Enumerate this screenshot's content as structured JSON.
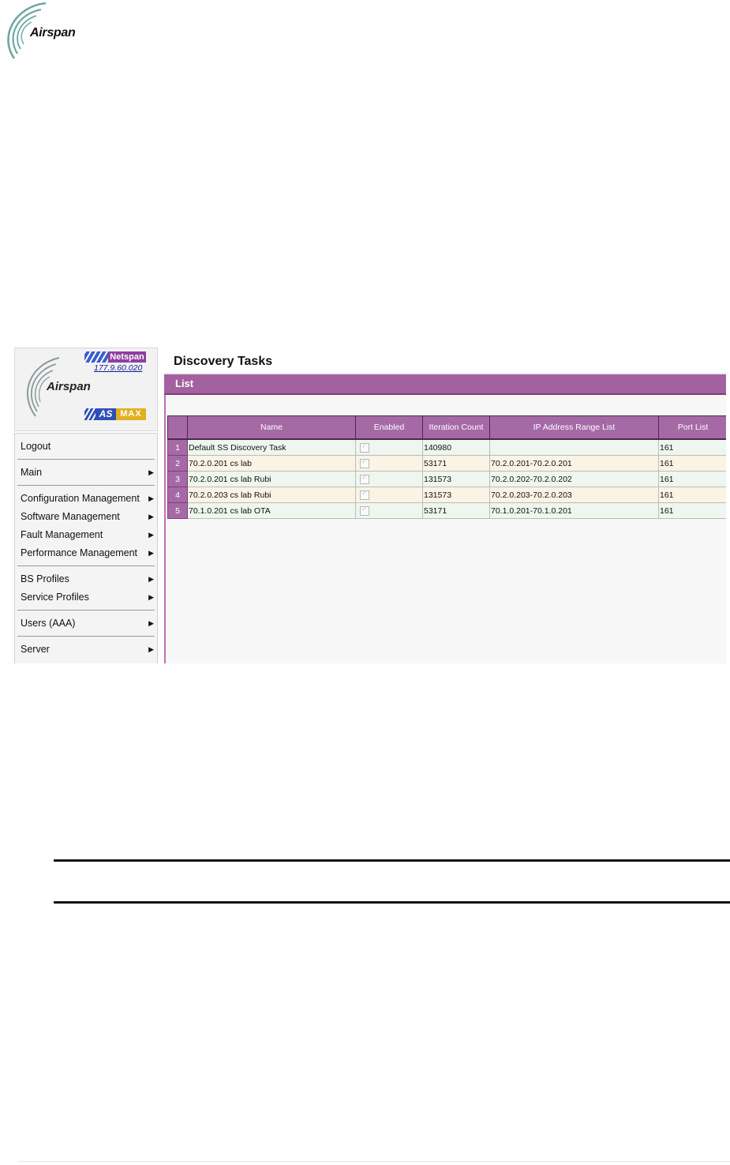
{
  "document": {
    "brand": "Airspan"
  },
  "app": {
    "brand": "Airspan",
    "product_badge": "Netspan",
    "version": "177.9.60.020",
    "asmax_as": "AS",
    "asmax_max": "MAX"
  },
  "menu": {
    "items": [
      {
        "label": "Logout",
        "submenu": false
      },
      {
        "label": "Main",
        "submenu": true
      },
      {
        "label": "Configuration Management",
        "submenu": true
      },
      {
        "label": "Software Management",
        "submenu": true
      },
      {
        "label": "Fault Management",
        "submenu": true
      },
      {
        "label": "Performance Management",
        "submenu": true
      },
      {
        "label": "BS Profiles",
        "submenu": true
      },
      {
        "label": "Service Profiles",
        "submenu": true
      },
      {
        "label": "Users (AAA)",
        "submenu": true
      },
      {
        "label": "Server",
        "submenu": true
      }
    ],
    "arrow": "▶"
  },
  "main": {
    "title": "Discovery Tasks",
    "list_label": "List",
    "table": {
      "columns": [
        "",
        "Name",
        "Enabled",
        "Iteration Count",
        "IP Address Range List",
        "Port List"
      ],
      "rows": [
        {
          "n": "1",
          "name": "Default SS Discovery Task",
          "enabled": true,
          "iter": "140980",
          "ip": "",
          "port": "161"
        },
        {
          "n": "2",
          "name": "70.2.0.201 cs lab",
          "enabled": true,
          "iter": "53171",
          "ip": "70.2.0.201-70.2.0.201",
          "port": "161"
        },
        {
          "n": "3",
          "name": "70.2.0.201 cs lab Rubi",
          "enabled": true,
          "iter": "131573",
          "ip": "70.2.0.202-70.2.0.202",
          "port": "161"
        },
        {
          "n": "4",
          "name": "70.2.0.203 cs lab Rubi",
          "enabled": true,
          "iter": "131573",
          "ip": "70.2.0.203-70.2.0.203",
          "port": "161"
        },
        {
          "n": "5",
          "name": "70.1.0.201 cs lab OTA",
          "enabled": true,
          "iter": "53171",
          "ip": "70.1.0.201-70.1.0.201",
          "port": "161"
        }
      ]
    }
  },
  "colors": {
    "accent": "#a56aa6",
    "netspan": "#8e3fa0",
    "asmax_blue": "#2f4fb8",
    "asmax_gold": "#e0b020"
  }
}
